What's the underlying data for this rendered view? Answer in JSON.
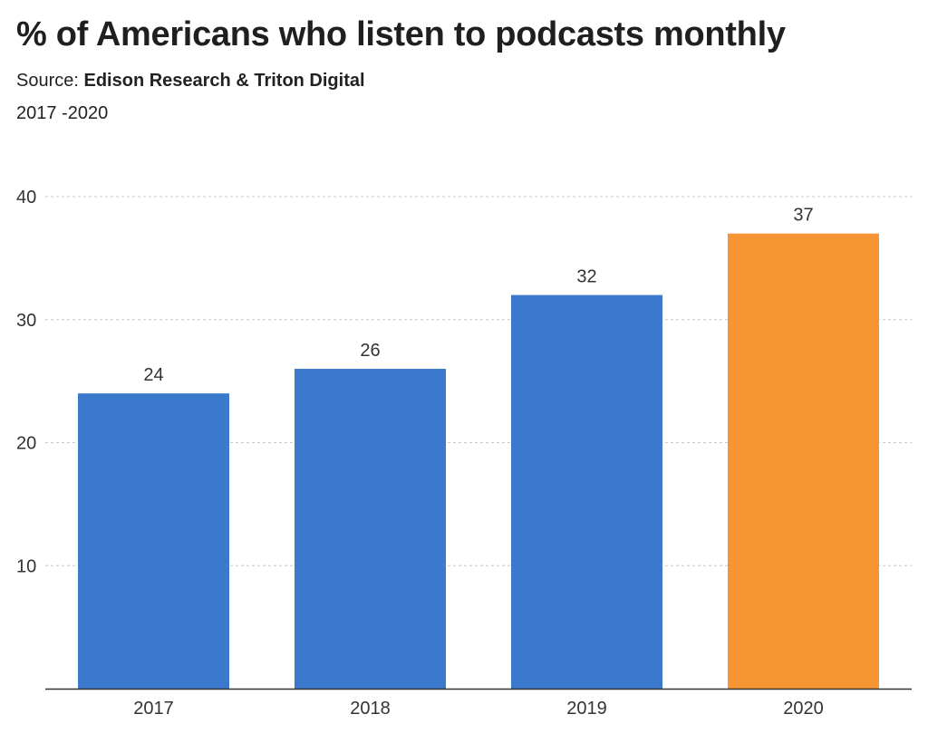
{
  "header": {
    "title": "% of Americans who listen to podcasts monthly",
    "source_label": "Source: ",
    "source_name": "Edison Research & Triton Digital",
    "subtitle": "2017 -2020"
  },
  "colors": {
    "bar_default": "#3b79cc",
    "bar_highlight": "#f79433",
    "gridline": "#c8c8c8",
    "axis": "#333333",
    "text": "#333333"
  },
  "chart_data": {
    "type": "bar",
    "title": "% of Americans who listen to podcasts monthly",
    "subtitle": "2017 -2020",
    "source": "Edison Research & Triton Digital",
    "categories": [
      "2017",
      "2018",
      "2019",
      "2020"
    ],
    "values": [
      24,
      26,
      32,
      37
    ],
    "highlight_index": 3,
    "xlabel": "",
    "ylabel": "",
    "ylim": [
      0,
      40
    ],
    "yticks": [
      10,
      20,
      30,
      40
    ],
    "grid": true,
    "grid_style": "dashed",
    "data_labels": true
  }
}
